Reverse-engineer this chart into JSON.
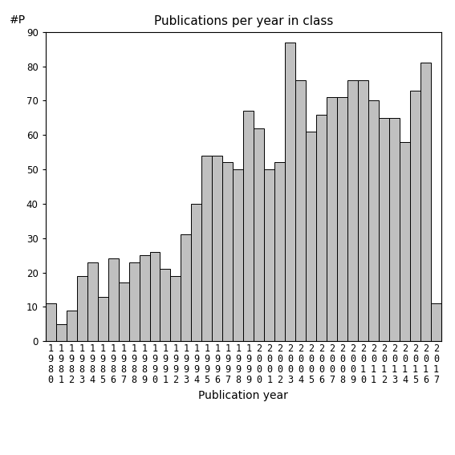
{
  "title": "Publications per year in class",
  "xlabel": "Publication year",
  "ylabel": "#P",
  "years": [
    1980,
    1981,
    1982,
    1983,
    1984,
    1985,
    1986,
    1987,
    1988,
    1989,
    1990,
    1991,
    1992,
    1993,
    1994,
    1995,
    1996,
    1997,
    1998,
    1999,
    2000,
    2001,
    2002,
    2003,
    2004,
    2005,
    2006,
    2007,
    2008,
    2009,
    2010,
    2011,
    2012,
    2013,
    2014,
    2015,
    2016,
    2017
  ],
  "values": [
    11,
    5,
    9,
    19,
    23,
    13,
    24,
    17,
    23,
    25,
    26,
    21,
    19,
    31,
    40,
    54,
    54,
    52,
    50,
    67,
    62,
    50,
    52,
    87,
    76,
    61,
    66,
    71,
    71,
    76,
    76,
    70,
    65,
    65,
    58,
    73,
    81,
    11
  ],
  "bar_color": "#c0c0c0",
  "bar_edge_color": "#000000",
  "ylim": [
    0,
    90
  ],
  "yticks": [
    0,
    10,
    20,
    30,
    40,
    50,
    60,
    70,
    80,
    90
  ],
  "bg_color": "#ffffff",
  "title_fontsize": 11,
  "label_fontsize": 10,
  "tick_fontsize": 8.5
}
